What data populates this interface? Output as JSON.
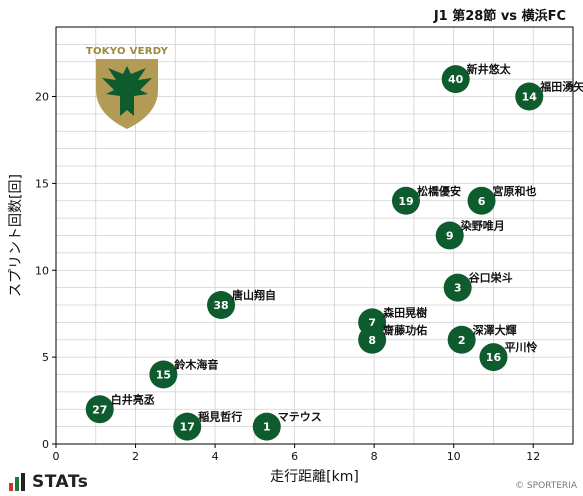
{
  "match_title": "J1 第28節 vs 横浜FC",
  "team_logo_text": "TOKYO VERDY",
  "footer": {
    "brand": "STATs",
    "copyright": "© SPORTERIA"
  },
  "colors": {
    "marker": "#0e5b2e",
    "marker_text": "#ffffff",
    "grid": "#d0d0d0",
    "axis": "#000000"
  },
  "chart_data": {
    "type": "scatter",
    "title": "J1 第28節 vs 横浜FC",
    "xlabel": "走行距離[km]",
    "ylabel": "スプリント回数[回]",
    "xlim": [
      0,
      13
    ],
    "ylim": [
      0,
      24
    ],
    "xticks": [
      0,
      2,
      4,
      6,
      8,
      10,
      12
    ],
    "yticks": [
      0,
      5,
      10,
      15,
      20
    ],
    "grid": true,
    "points": [
      {
        "number": "40",
        "name": "新井悠太",
        "x": 10.05,
        "y": 21
      },
      {
        "number": "14",
        "name": "福田湧矢",
        "x": 11.9,
        "y": 20
      },
      {
        "number": "19",
        "name": "松橋優安",
        "x": 8.8,
        "y": 14
      },
      {
        "number": "6",
        "name": "宮原和也",
        "x": 10.7,
        "y": 14
      },
      {
        "number": "9",
        "name": "染野唯月",
        "x": 9.9,
        "y": 12
      },
      {
        "number": "3",
        "name": "谷口栄斗",
        "x": 10.1,
        "y": 9
      },
      {
        "number": "38",
        "name": "唐山翔自",
        "x": 4.15,
        "y": 8
      },
      {
        "number": "7",
        "name": "森田晃樹",
        "x": 7.95,
        "y": 7
      },
      {
        "number": "8",
        "name": "齋藤功佑",
        "x": 7.95,
        "y": 6
      },
      {
        "number": "2",
        "name": "深澤大輝",
        "x": 10.2,
        "y": 6
      },
      {
        "number": "16",
        "name": "平川怜",
        "x": 11.0,
        "y": 5
      },
      {
        "number": "15",
        "name": "鈴木海音",
        "x": 2.7,
        "y": 4
      },
      {
        "number": "27",
        "name": "白井亮丞",
        "x": 1.1,
        "y": 2
      },
      {
        "number": "17",
        "name": "稲見哲行",
        "x": 3.3,
        "y": 1
      },
      {
        "number": "1",
        "name": "マテウス",
        "x": 5.3,
        "y": 1
      }
    ]
  }
}
